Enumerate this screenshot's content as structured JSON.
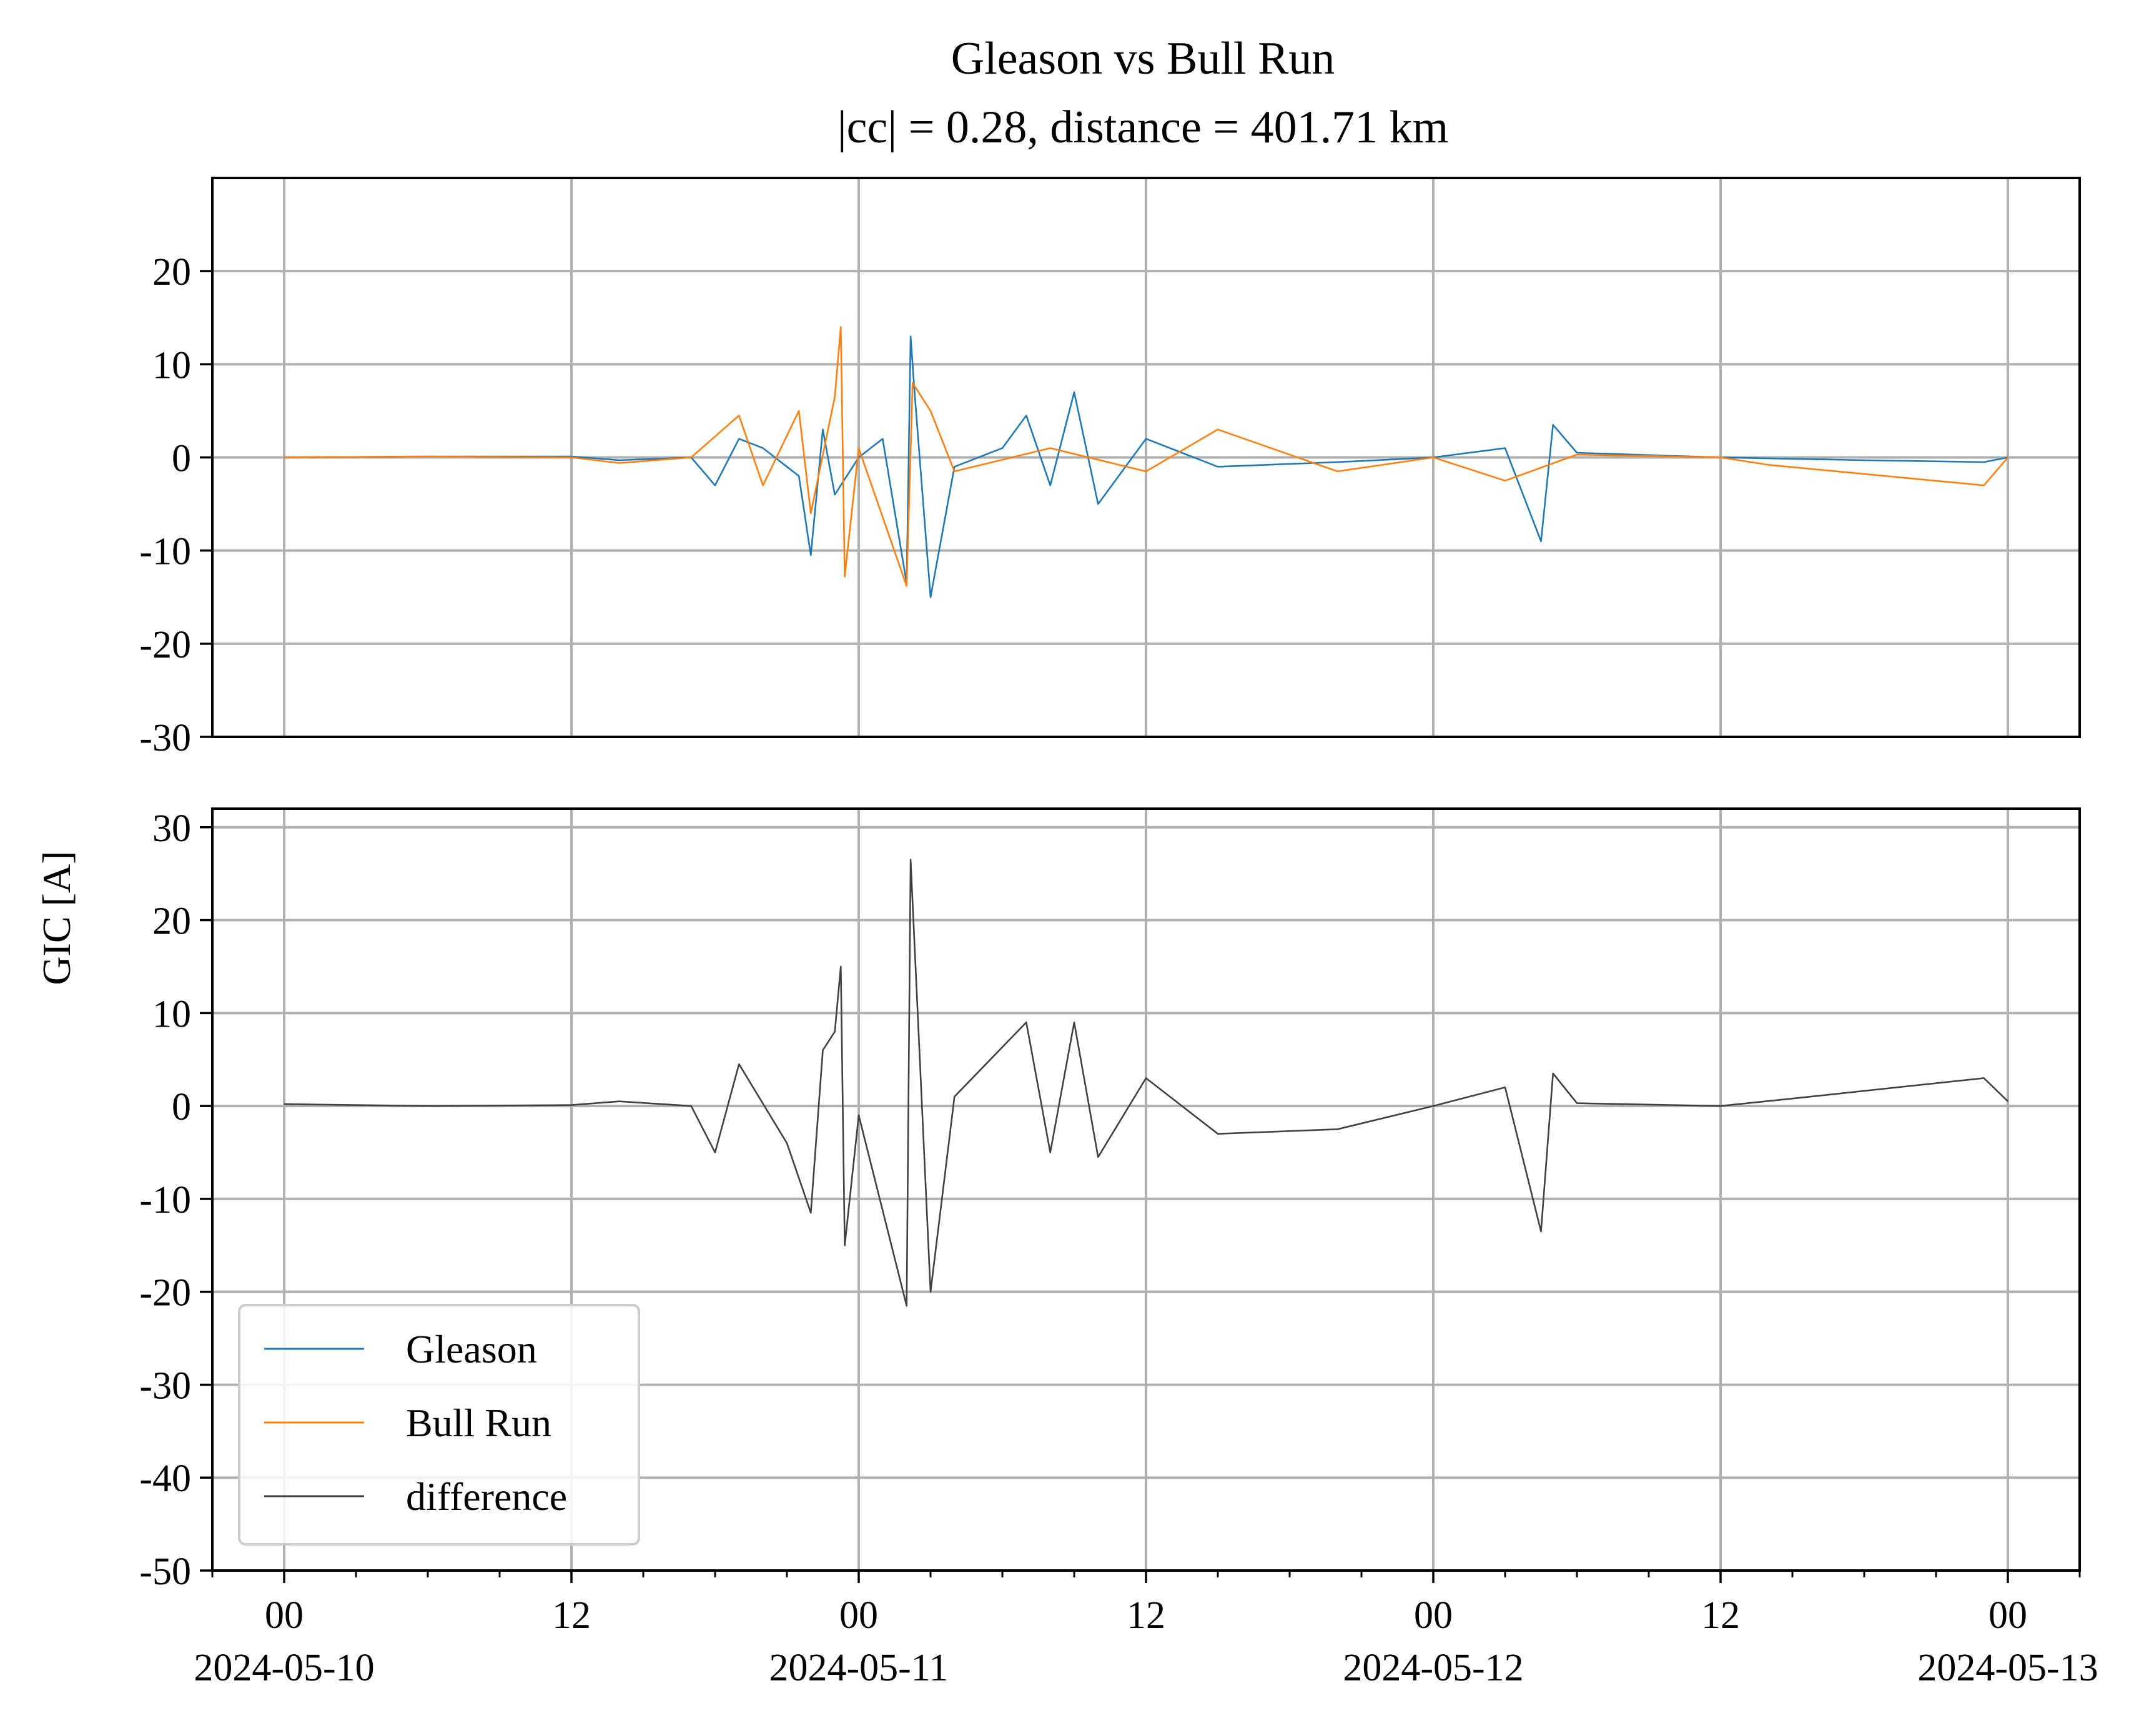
{
  "title": "Gleason vs Bull Run",
  "subtitle": "|cc| = 0.28, distance = 401.71 km",
  "ylabel": "GIC [A]",
  "legend": {
    "placement": "lower-left",
    "items": [
      {
        "label": "Gleason",
        "color": "#1f77b4"
      },
      {
        "label": "Bull Run",
        "color": "#ff7f0e"
      },
      {
        "label": "difference",
        "color": "#404040"
      }
    ]
  },
  "chart_data": [
    {
      "type": "line",
      "panel": "top",
      "xlim": [
        "2024-05-09T21:00",
        "2024-05-13T03:00"
      ],
      "ylim": [
        -30,
        30
      ],
      "yticks": [
        "20",
        "10",
        "0",
        "-10",
        "-20",
        "-30"
      ],
      "ytick_values": [
        20,
        10,
        0,
        -10,
        -20,
        -30
      ],
      "grid": true,
      "series": [
        {
          "name": "Gleason",
          "color": "#1f77b4",
          "points": [
            [
              "2024-05-10T00:00",
              0
            ],
            [
              "2024-05-10T06:00",
              0.1
            ],
            [
              "2024-05-10T12:00",
              0.1
            ],
            [
              "2024-05-10T14:00",
              -0.3
            ],
            [
              "2024-05-10T17:00",
              0
            ],
            [
              "2024-05-10T18:00",
              -3
            ],
            [
              "2024-05-10T19:00",
              2
            ],
            [
              "2024-05-10T20:00",
              1
            ],
            [
              "2024-05-10T21:30",
              -2
            ],
            [
              "2024-05-10T22:00",
              -10.5
            ],
            [
              "2024-05-10T22:30",
              3
            ],
            [
              "2024-05-10T23:00",
              -4
            ],
            [
              "2024-05-11T00:00",
              0
            ],
            [
              "2024-05-11T01:00",
              2
            ],
            [
              "2024-05-11T02:00",
              -13.5
            ],
            [
              "2024-05-11T02:10",
              13
            ],
            [
              "2024-05-11T02:20",
              7
            ],
            [
              "2024-05-11T03:00",
              -15
            ],
            [
              "2024-05-11T04:00",
              -1
            ],
            [
              "2024-05-11T06:00",
              1
            ],
            [
              "2024-05-11T07:00",
              4.5
            ],
            [
              "2024-05-11T08:00",
              -3
            ],
            [
              "2024-05-11T09:00",
              7
            ],
            [
              "2024-05-11T10:00",
              -5
            ],
            [
              "2024-05-11T12:00",
              2
            ],
            [
              "2024-05-11T15:00",
              -1
            ],
            [
              "2024-05-11T20:00",
              -0.5
            ],
            [
              "2024-05-12T00:00",
              0
            ],
            [
              "2024-05-12T03:00",
              1
            ],
            [
              "2024-05-12T04:30",
              -9
            ],
            [
              "2024-05-12T05:00",
              3.5
            ],
            [
              "2024-05-12T06:00",
              0.5
            ],
            [
              "2024-05-12T12:00",
              0
            ],
            [
              "2024-05-12T18:00",
              -0.3
            ],
            [
              "2024-05-12T23:00",
              -0.5
            ],
            [
              "2024-05-13T00:00",
              0
            ]
          ]
        },
        {
          "name": "Bull Run",
          "color": "#ff7f0e",
          "points": [
            [
              "2024-05-10T00:00",
              0
            ],
            [
              "2024-05-10T06:00",
              0.1
            ],
            [
              "2024-05-10T12:00",
              0
            ],
            [
              "2024-05-10T14:00",
              -0.6
            ],
            [
              "2024-05-10T17:00",
              0
            ],
            [
              "2024-05-10T19:00",
              4.5
            ],
            [
              "2024-05-10T20:00",
              -3
            ],
            [
              "2024-05-10T21:30",
              5
            ],
            [
              "2024-05-10T22:00",
              -6
            ],
            [
              "2024-05-10T23:00",
              6.5
            ],
            [
              "2024-05-10T23:15",
              14
            ],
            [
              "2024-05-10T23:25",
              -12.8
            ],
            [
              "2024-05-11T00:00",
              1
            ],
            [
              "2024-05-11T02:00",
              -13.8
            ],
            [
              "2024-05-11T02:15",
              8
            ],
            [
              "2024-05-11T03:00",
              5
            ],
            [
              "2024-05-11T04:00",
              -1.5
            ],
            [
              "2024-05-11T08:00",
              1
            ],
            [
              "2024-05-11T12:00",
              -1.5
            ],
            [
              "2024-05-11T15:00",
              3
            ],
            [
              "2024-05-11T20:00",
              -1.5
            ],
            [
              "2024-05-12T00:00",
              0
            ],
            [
              "2024-05-12T03:00",
              -2.5
            ],
            [
              "2024-05-12T06:00",
              0.3
            ],
            [
              "2024-05-12T12:00",
              0
            ],
            [
              "2024-05-12T14:00",
              -0.8
            ],
            [
              "2024-05-12T23:00",
              -3
            ],
            [
              "2024-05-13T00:00",
              0
            ]
          ]
        }
      ]
    },
    {
      "type": "line",
      "panel": "bottom",
      "xlim": [
        "2024-05-09T21:00",
        "2024-05-13T03:00"
      ],
      "ylim": [
        -50,
        32
      ],
      "yticks": [
        "30",
        "20",
        "10",
        "0",
        "-10",
        "-20",
        "-30",
        "-40",
        "-50"
      ],
      "ytick_values": [
        30,
        20,
        10,
        0,
        -10,
        -20,
        -30,
        -40,
        -50
      ],
      "grid": true,
      "series": [
        {
          "name": "difference",
          "color": "#404040",
          "points": [
            [
              "2024-05-10T00:00",
              0.2
            ],
            [
              "2024-05-10T06:00",
              0
            ],
            [
              "2024-05-10T12:00",
              0.1
            ],
            [
              "2024-05-10T14:00",
              0.5
            ],
            [
              "2024-05-10T17:00",
              0
            ],
            [
              "2024-05-10T18:00",
              -5
            ],
            [
              "2024-05-10T19:00",
              4.5
            ],
            [
              "2024-05-10T21:00",
              -4
            ],
            [
              "2024-05-10T22:00",
              -11.5
            ],
            [
              "2024-05-10T22:30",
              6
            ],
            [
              "2024-05-10T23:00",
              8
            ],
            [
              "2024-05-10T23:15",
              15
            ],
            [
              "2024-05-10T23:25",
              -15
            ],
            [
              "2024-05-11T00:00",
              -1
            ],
            [
              "2024-05-11T02:00",
              -21.5
            ],
            [
              "2024-05-11T02:10",
              26.5
            ],
            [
              "2024-05-11T03:00",
              -20
            ],
            [
              "2024-05-11T04:00",
              1
            ],
            [
              "2024-05-11T07:00",
              9
            ],
            [
              "2024-05-11T08:00",
              -5
            ],
            [
              "2024-05-11T09:00",
              9
            ],
            [
              "2024-05-11T10:00",
              -5.5
            ],
            [
              "2024-05-11T12:00",
              3
            ],
            [
              "2024-05-11T15:00",
              -3
            ],
            [
              "2024-05-11T20:00",
              -2.5
            ],
            [
              "2024-05-12T00:00",
              0
            ],
            [
              "2024-05-12T03:00",
              2
            ],
            [
              "2024-05-12T04:30",
              -13.5
            ],
            [
              "2024-05-12T05:00",
              3.5
            ],
            [
              "2024-05-12T06:00",
              0.3
            ],
            [
              "2024-05-12T12:00",
              0
            ],
            [
              "2024-05-12T15:00",
              0.8
            ],
            [
              "2024-05-12T23:00",
              3
            ],
            [
              "2024-05-13T00:00",
              0.5
            ]
          ]
        }
      ]
    }
  ],
  "xticks": [
    {
      "time": "2024-05-10T00:00",
      "label": "00",
      "date": "2024-05-10"
    },
    {
      "time": "2024-05-10T12:00",
      "label": "12",
      "date": ""
    },
    {
      "time": "2024-05-11T00:00",
      "label": "00",
      "date": "2024-05-11"
    },
    {
      "time": "2024-05-11T12:00",
      "label": "12",
      "date": ""
    },
    {
      "time": "2024-05-12T00:00",
      "label": "00",
      "date": "2024-05-12"
    },
    {
      "time": "2024-05-12T12:00",
      "label": "12",
      "date": ""
    },
    {
      "time": "2024-05-13T00:00",
      "label": "00",
      "date": "2024-05-13"
    }
  ]
}
